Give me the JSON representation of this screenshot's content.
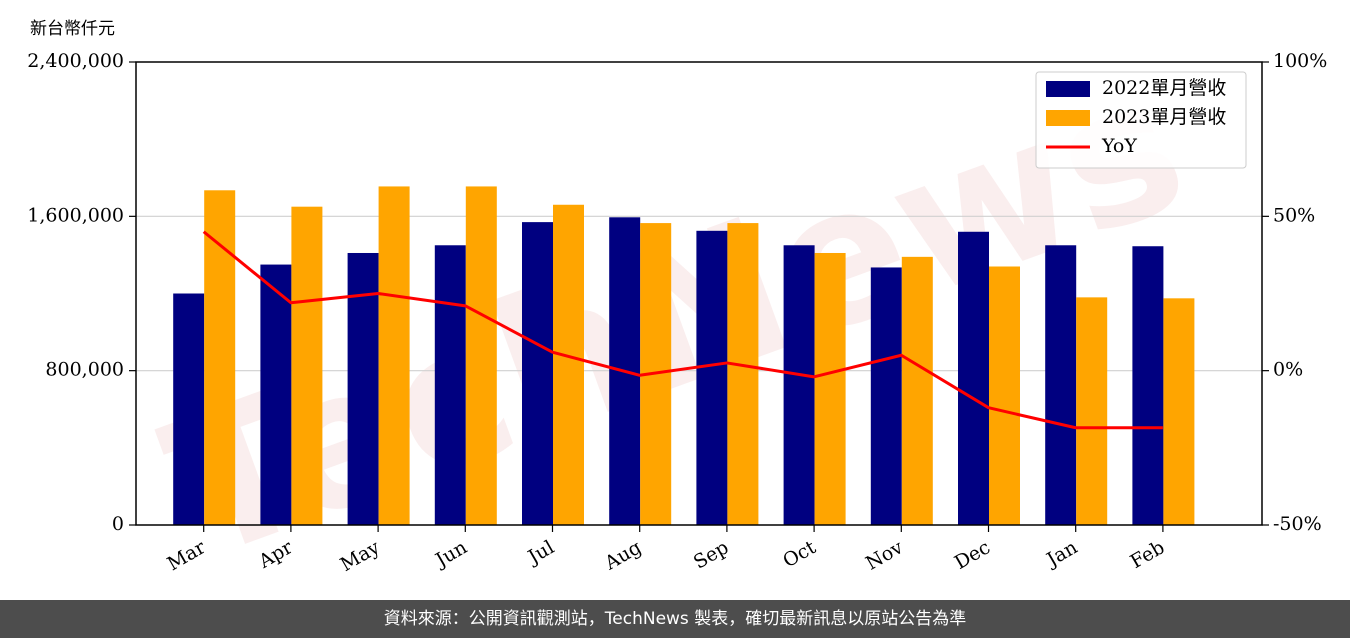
{
  "unit_label": "新台幣仟元",
  "footer": "資料來源：公開資訊觀測站，TechNews 製表，確切最新訊息以原站公告為準",
  "watermark": "TechNews",
  "chart_data": {
    "type": "bar",
    "categories": [
      "Mar",
      "Apr",
      "May",
      "Jun",
      "Jul",
      "Aug",
      "Sep",
      "Oct",
      "Nov",
      "Dec",
      "Jan",
      "Feb"
    ],
    "series": [
      {
        "name": "2022單月營收",
        "type": "bar",
        "axis": "left",
        "color": "#000080",
        "values": [
          1200000,
          1350000,
          1410000,
          1450000,
          1570000,
          1595000,
          1525000,
          1450000,
          1335000,
          1520000,
          1450000,
          1445000
        ]
      },
      {
        "name": "2023單月營收",
        "type": "bar",
        "axis": "left",
        "color": "#ffa500",
        "values": [
          1735000,
          1650000,
          1755000,
          1755000,
          1660000,
          1565000,
          1565000,
          1410000,
          1390000,
          1340000,
          1180000,
          1175000
        ]
      },
      {
        "name": "YoY",
        "type": "line",
        "axis": "right",
        "color": "#ff0000",
        "values": [
          45,
          22,
          25,
          21,
          6,
          -1.5,
          2.5,
          -2,
          5,
          -12,
          -18.5,
          -18.5
        ]
      }
    ],
    "left_axis": {
      "min": 0,
      "max": 2400000,
      "ticks": [
        0,
        800000,
        1600000,
        2400000
      ],
      "tick_labels": [
        "0",
        "800,000",
        "1,600,000",
        "2,400,000"
      ]
    },
    "right_axis": {
      "min": -50,
      "max": 100,
      "ticks": [
        -50,
        0,
        50,
        100
      ],
      "tick_labels": [
        "-50%",
        "0%",
        "50%",
        "100%"
      ]
    },
    "grid": true,
    "legend": "top-right"
  }
}
